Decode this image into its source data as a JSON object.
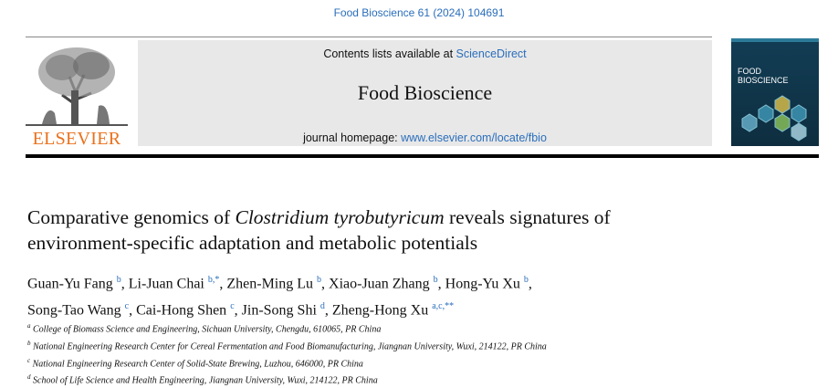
{
  "citation": "Food Bioscience 61 (2024) 104691",
  "publisher": "ELSEVIER",
  "header": {
    "contents_prefix": "Contents lists available at",
    "contents_link": "ScienceDirect",
    "journal": "Food Bioscience",
    "homepage_prefix": "journal homepage:",
    "homepage_link": "www.elsevier.com/locate/fbio"
  },
  "cover": {
    "line1": "FOOD",
    "line2": "BIOSCIENCE"
  },
  "article": {
    "title_lines": [
      [
        "Comparative genomics of",
        "Clostridium tyrobutyricum",
        "reveals signatures of"
      ],
      [
        "environment-specific adaptation and metabolic potentials"
      ]
    ],
    "author_lines": [
      [
        {
          "name": "Guan-Yu Fang",
          "sup": "b",
          "sep": ","
        },
        {
          "name": "Li-Juan Chai",
          "sup": "b,*",
          "sep": ","
        },
        {
          "name": "Zhen-Ming Lu",
          "sup": "b",
          "sep": ","
        },
        {
          "name": "Xiao-Juan Zhang",
          "sup": "b",
          "sep": ","
        },
        {
          "name": "Hong-Yu Xu",
          "sup": "b",
          "sep": ","
        }
      ],
      [
        {
          "name": "Song-Tao Wang",
          "sup": "c",
          "sep": ","
        },
        {
          "name": "Cai-Hong Shen",
          "sup": "c",
          "sep": ","
        },
        {
          "name": "Jin-Song Shi",
          "sup": "d",
          "sep": ","
        },
        {
          "name": "Zheng-Hong Xu",
          "sup": "a,c,**"
        }
      ]
    ],
    "affiliations": [
      {
        "label": "a",
        "text": "College of Biomass Science and Engineering, Sichuan University, Chengdu, 610065, PR China"
      },
      {
        "label": "b",
        "text": "National Engineering Research Center for Cereal Fermentation and Food Biomanufacturing, Jiangnan University, Wuxi, 214122, PR China"
      },
      {
        "label": "c",
        "text": "National Engineering Research Center of Solid-State Brewing, Luzhou, 646000, PR China"
      },
      {
        "label": "d",
        "text": "School of Life Science and Health Engineering, Jiangnan University, Wuxi, 214122, PR China"
      }
    ]
  }
}
